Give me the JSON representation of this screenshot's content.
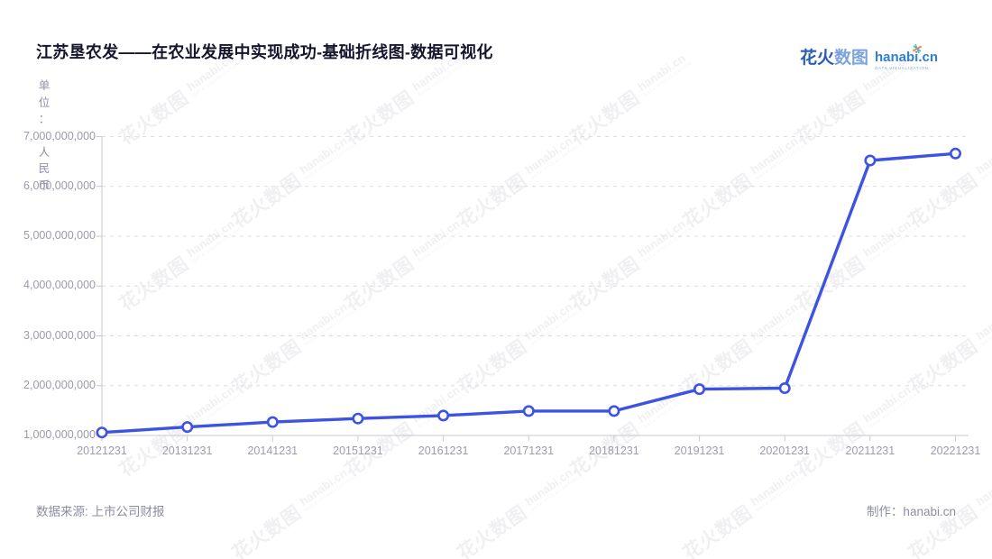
{
  "header": {
    "logo": {
      "brand_cn_primary": "花火",
      "brand_cn_secondary": "数图",
      "brand_en": "hanabi.cn",
      "brand_sub": "DATA VISUALIZATION"
    }
  },
  "chart_data": {
    "type": "line",
    "title": "江苏垦农发——在农业发展中实现成功-基础折线图-数据可视化",
    "unit_label": "单位：人民币",
    "categories": [
      "20121231",
      "20131231",
      "20141231",
      "20151231",
      "20161231",
      "20171231",
      "20181231",
      "20191231",
      "20201231",
      "20211231",
      "20221231"
    ],
    "values": [
      1060000000,
      1170000000,
      1270000000,
      1340000000,
      1400000000,
      1490000000,
      1490000000,
      1930000000,
      1950000000,
      6520000000,
      6660000000
    ],
    "ylim": [
      1000000000,
      7000000000
    ],
    "ytick_interval": 1000000000,
    "ytick_labels": [
      "1,000,000,000",
      "2,000,000,000",
      "3,000,000,000",
      "4,000,000,000",
      "5,000,000,000",
      "6,000,000,000",
      "7,000,000,000"
    ],
    "xlabel": "",
    "ylabel": "单位：人民币",
    "grid": true,
    "legend": false,
    "line_color": "#3d53e3",
    "marker_style": "open-circle",
    "axis_color": "#c9c9d0",
    "grid_color": "#dcdce1"
  },
  "footer": {
    "source": "数据来源: 上市公司财报",
    "credit": "制作：hanabi.cn"
  },
  "watermark": {
    "text_cn": "花火数图",
    "text_en": "hanabi.cn",
    "text_sub": "DATA VISUALIZATION"
  }
}
